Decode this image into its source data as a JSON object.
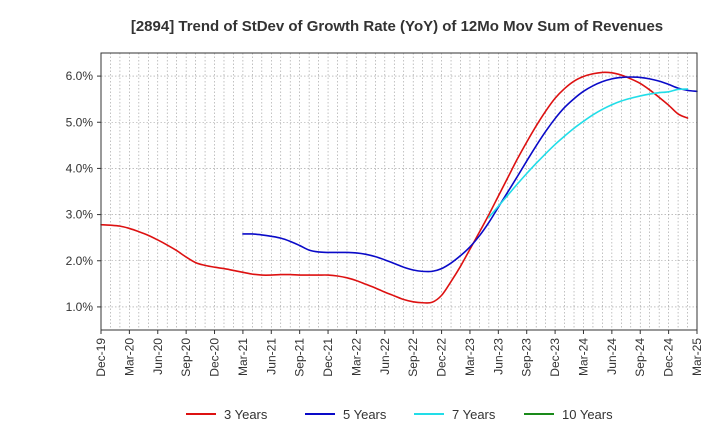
{
  "chart_data": {
    "type": "line",
    "title": "[2894]  Trend of StDev of Growth Rate (YoY) of 12Mo Mov Sum of Revenues",
    "xlabel": "",
    "ylabel": "",
    "x_tick_labels": [
      "Dec-19",
      "Mar-20",
      "Jun-20",
      "Sep-20",
      "Dec-20",
      "Mar-21",
      "Jun-21",
      "Sep-21",
      "Dec-21",
      "Mar-22",
      "Jun-22",
      "Sep-22",
      "Dec-22",
      "Mar-23",
      "Jun-23",
      "Sep-23",
      "Dec-23",
      "Mar-24",
      "Jun-24",
      "Sep-24",
      "Dec-24",
      "Mar-25"
    ],
    "y_tick_labels": [
      "1.0%",
      "2.0%",
      "3.0%",
      "4.0%",
      "5.0%",
      "6.0%"
    ],
    "y_ticks": [
      1.0,
      2.0,
      3.0,
      4.0,
      5.0,
      6.0
    ],
    "ylim": [
      0.5,
      6.5
    ],
    "grid": true,
    "legend_position": "bottom",
    "series": [
      {
        "name": "3 Years",
        "color": "#dd1111",
        "start_index": 0,
        "values": [
          2.78,
          2.77,
          2.75,
          2.7,
          2.63,
          2.55,
          2.45,
          2.34,
          2.22,
          2.08,
          1.96,
          1.9,
          1.86,
          1.83,
          1.79,
          1.75,
          1.71,
          1.69,
          1.69,
          1.7,
          1.7,
          1.69,
          1.69,
          1.69,
          1.69,
          1.67,
          1.63,
          1.57,
          1.49,
          1.41,
          1.32,
          1.24,
          1.16,
          1.11,
          1.09,
          1.1,
          1.25,
          1.55,
          1.88,
          2.25,
          2.62,
          3.0,
          3.4,
          3.8,
          4.2,
          4.57,
          4.92,
          5.24,
          5.52,
          5.73,
          5.89,
          5.99,
          6.05,
          6.08,
          6.07,
          6.02,
          5.94,
          5.84,
          5.7,
          5.54,
          5.37,
          5.18,
          5.09
        ]
      },
      {
        "name": "5 Years",
        "color": "#0a0ac8",
        "start_index": 15,
        "values": [
          2.58,
          2.58,
          2.56,
          2.53,
          2.49,
          2.42,
          2.33,
          2.23,
          2.19,
          2.18,
          2.18,
          2.18,
          2.17,
          2.14,
          2.09,
          2.02,
          1.94,
          1.86,
          1.8,
          1.77,
          1.77,
          1.83,
          1.95,
          2.11,
          2.3,
          2.54,
          2.83,
          3.16,
          3.49,
          3.82,
          4.16,
          4.49,
          4.8,
          5.08,
          5.32,
          5.51,
          5.67,
          5.79,
          5.88,
          5.94,
          5.97,
          5.98,
          5.97,
          5.94,
          5.89,
          5.82,
          5.74,
          5.69,
          5.67
        ]
      },
      {
        "name": "7 Years",
        "color": "#22dde8",
        "start_index": 41,
        "values": [
          2.94,
          3.18,
          3.42,
          3.66,
          3.89,
          4.11,
          4.32,
          4.52,
          4.7,
          4.87,
          5.02,
          5.16,
          5.28,
          5.38,
          5.46,
          5.52,
          5.57,
          5.61,
          5.64,
          5.66,
          5.71,
          5.72
        ]
      },
      {
        "name": "10 Years",
        "color": "#1a8a1a",
        "start_index": 0,
        "values": []
      }
    ]
  }
}
